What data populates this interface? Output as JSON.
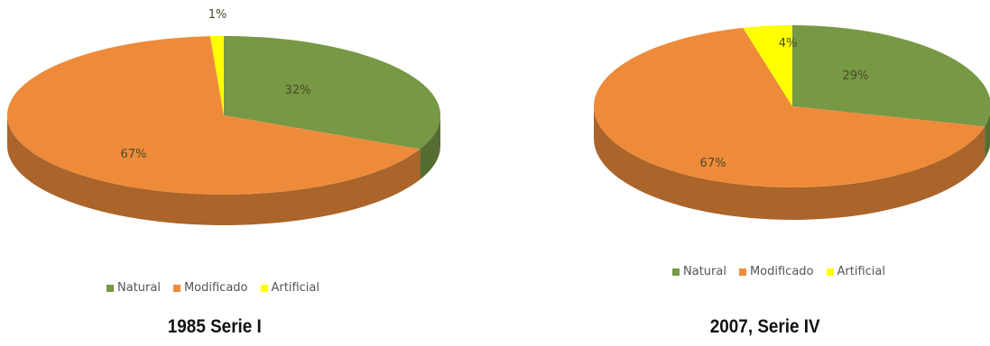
{
  "chart_data": [
    {
      "type": "pie",
      "style": "3d",
      "caption": "1985 Serie I",
      "categories": [
        "Natural",
        "Modificado",
        "Artificial"
      ],
      "values": [
        32,
        67,
        1
      ],
      "labels": [
        "32%",
        "67%",
        "1%"
      ],
      "colors": [
        "#779844",
        "#EE8B3A",
        "#FFFF00"
      ],
      "legend_position": "bottom"
    },
    {
      "type": "pie",
      "style": "3d",
      "caption": "2007, Serie IV",
      "categories": [
        "Natural",
        "Modificado",
        "Artificial"
      ],
      "values": [
        29,
        67,
        4
      ],
      "labels": [
        "29%",
        "67%",
        "4%"
      ],
      "colors": [
        "#779844",
        "#EE8B3A",
        "#FFFF00"
      ],
      "legend_position": "bottom"
    }
  ]
}
